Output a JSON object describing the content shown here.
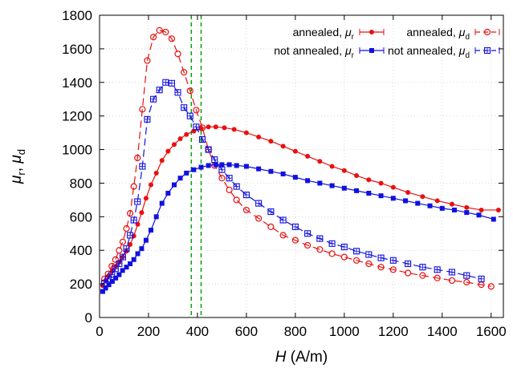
{
  "chart_data": {
    "type": "line",
    "title": "",
    "xlabel": {
      "italic": "H",
      "unit": " (A/m)"
    },
    "ylabel": {
      "mu": "μ",
      "sub1": "r",
      "sep": ", ",
      "sub2": "d"
    },
    "xlim": [
      0,
      1650
    ],
    "ylim": [
      0,
      1800
    ],
    "x_ticks": [
      0,
      200,
      400,
      600,
      800,
      1000,
      1200,
      1400,
      1600
    ],
    "y_ticks": [
      0,
      200,
      400,
      600,
      800,
      1000,
      1200,
      1400,
      1600,
      1800
    ],
    "grid": true,
    "legend_placement": "top-right",
    "vlines": [
      {
        "x": 375,
        "color": "#00a000",
        "dash": "dashed"
      },
      {
        "x": 415,
        "color": "#00a000",
        "dash": "dashed"
      }
    ],
    "series": [
      {
        "name": "annealed, μr",
        "legend": {
          "text": "annealed, ",
          "mu": "μ",
          "sub": "r"
        },
        "color": "#e81010",
        "marker": "filled-circle",
        "line": "solid",
        "x": [
          13,
          25,
          38,
          52,
          66,
          80,
          94,
          110,
          125,
          140,
          156,
          172,
          190,
          210,
          232,
          255,
          280,
          305,
          330,
          355,
          385,
          415,
          445,
          475,
          510,
          550,
          600,
          650,
          700,
          750,
          800,
          850,
          900,
          950,
          1000,
          1050,
          1100,
          1150,
          1200,
          1260,
          1320,
          1380,
          1440,
          1500,
          1560,
          1630
        ],
        "y": [
          190,
          220,
          250,
          280,
          305,
          330,
          360,
          395,
          435,
          485,
          555,
          625,
          710,
          790,
          860,
          935,
          990,
          1030,
          1065,
          1090,
          1110,
          1125,
          1135,
          1135,
          1130,
          1120,
          1100,
          1075,
          1050,
          1020,
          990,
          960,
          930,
          900,
          875,
          845,
          820,
          800,
          775,
          745,
          720,
          695,
          675,
          655,
          640,
          640
        ]
      },
      {
        "name": "annealed, μd",
        "legend": {
          "text": "annealed, ",
          "mu": "μ",
          "sub": "d"
        },
        "color": "#e81010",
        "marker": "open-circle",
        "line": "dashed",
        "x": [
          20,
          35,
          50,
          65,
          80,
          95,
          110,
          125,
          140,
          155,
          175,
          195,
          220,
          245,
          270,
          295,
          320,
          345,
          370,
          395,
          420,
          445,
          470,
          500,
          530,
          560,
          600,
          650,
          700,
          750,
          800,
          850,
          900,
          950,
          1000,
          1050,
          1100,
          1150,
          1200,
          1260,
          1320,
          1380,
          1440,
          1500,
          1560,
          1600
        ],
        "y": [
          230,
          260,
          305,
          345,
          400,
          450,
          530,
          620,
          780,
          950,
          1240,
          1530,
          1670,
          1710,
          1700,
          1660,
          1570,
          1460,
          1350,
          1235,
          1130,
          1000,
          905,
          830,
          760,
          700,
          640,
          590,
          540,
          490,
          460,
          430,
          405,
          380,
          360,
          340,
          320,
          300,
          285,
          265,
          250,
          235,
          220,
          210,
          195,
          185
        ]
      },
      {
        "name": "not annealed, μr",
        "legend": {
          "text": "not annealed, ",
          "mu": "μ",
          "sub": "r"
        },
        "color": "#1010e0",
        "marker": "filled-square",
        "line": "solid",
        "x": [
          13,
          25,
          38,
          52,
          66,
          80,
          94,
          110,
          125,
          140,
          156,
          172,
          190,
          210,
          232,
          255,
          280,
          305,
          330,
          355,
          385,
          415,
          445,
          475,
          500,
          530,
          560,
          600,
          650,
          700,
          750,
          800,
          850,
          900,
          950,
          1000,
          1050,
          1100,
          1150,
          1200,
          1250,
          1300,
          1350,
          1400,
          1450,
          1500,
          1550,
          1610
        ],
        "y": [
          155,
          175,
          195,
          215,
          235,
          255,
          280,
          300,
          320,
          345,
          380,
          410,
          460,
          520,
          600,
          680,
          740,
          790,
          830,
          860,
          880,
          895,
          905,
          910,
          910,
          910,
          905,
          900,
          885,
          870,
          855,
          835,
          815,
          800,
          785,
          770,
          755,
          740,
          725,
          710,
          695,
          680,
          665,
          650,
          640,
          625,
          610,
          585
        ]
      },
      {
        "name": "not annealed, μd",
        "legend": {
          "text": "not annealed, ",
          "mu": "μ",
          "sub": "d"
        },
        "color": "#1010e0",
        "marker": "open-square",
        "line": "dashed",
        "x": [
          20,
          35,
          50,
          65,
          80,
          95,
          110,
          125,
          140,
          155,
          175,
          195,
          220,
          245,
          270,
          295,
          320,
          345,
          370,
          395,
          420,
          445,
          470,
          500,
          530,
          560,
          600,
          650,
          700,
          750,
          800,
          850,
          900,
          950,
          1000,
          1050,
          1100,
          1150,
          1200,
          1260,
          1320,
          1380,
          1440,
          1500,
          1560
        ],
        "y": [
          205,
          230,
          255,
          290,
          320,
          360,
          410,
          490,
          580,
          690,
          900,
          1180,
          1300,
          1355,
          1400,
          1395,
          1340,
          1250,
          1200,
          1135,
          1060,
          1000,
          940,
          880,
          830,
          780,
          730,
          680,
          630,
          580,
          540,
          500,
          470,
          440,
          420,
          395,
          375,
          355,
          340,
          320,
          300,
          285,
          270,
          250,
          230
        ]
      }
    ]
  }
}
